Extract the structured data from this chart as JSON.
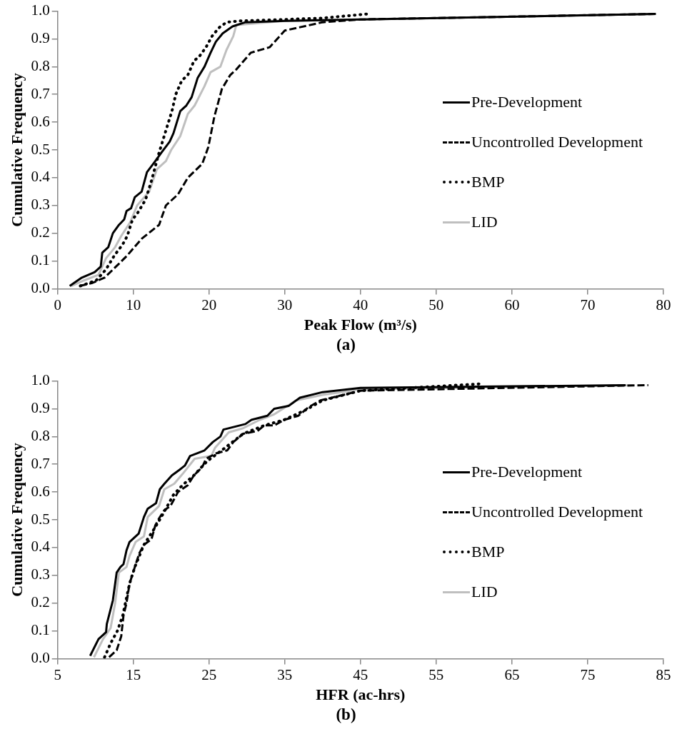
{
  "chart_data": [
    {
      "type": "line",
      "xlabel": "Peak Flow (m³/s)",
      "ylabel": "Cumulative Frequency",
      "legend": "right",
      "annotations": [
        "(a)"
      ],
      "xlim": [
        0,
        80
      ],
      "xticks": [
        0,
        10,
        20,
        30,
        40,
        50,
        60,
        70,
        80
      ],
      "ylim": [
        0,
        1
      ],
      "yticks": [
        {
          "value": 0,
          "label": "0.0"
        },
        {
          "value": 0.1,
          "label": "0.1"
        },
        {
          "value": 0.2,
          "label": "0.2"
        },
        {
          "value": 0.3,
          "label": "0.3"
        },
        {
          "value": 0.4,
          "label": "0.4"
        },
        {
          "value": 0.5,
          "label": "0.5"
        },
        {
          "value": 0.6,
          "label": "0.6"
        },
        {
          "value": 0.7,
          "label": "0.7"
        },
        {
          "value": 0.8,
          "label": "0.8"
        },
        {
          "value": 0.9,
          "label": "0.9"
        },
        {
          "value": 1,
          "label": "1.0"
        }
      ],
      "series": [
        {
          "name": "Pre-Development",
          "color": "#000000",
          "line_style": "solid",
          "x": [
            1.6,
            3.2,
            4.9,
            5.7,
            5.9,
            6.7,
            7.3,
            8.1,
            8.8,
            9.1,
            9.7,
            10.2,
            11.1,
            11.8,
            12.9,
            13.7,
            14.8,
            15.3,
            16.2,
            17.0,
            17.7,
            18.5,
            19.4,
            20.2,
            20.9,
            21.8,
            23.1,
            24.8,
            30,
            40,
            79
          ],
          "values": [
            0.01,
            0.04,
            0.06,
            0.08,
            0.13,
            0.15,
            0.2,
            0.23,
            0.25,
            0.28,
            0.29,
            0.33,
            0.35,
            0.42,
            0.46,
            0.49,
            0.53,
            0.56,
            0.64,
            0.66,
            0.69,
            0.76,
            0.8,
            0.85,
            0.89,
            0.92,
            0.945,
            0.96,
            0.965,
            0.97,
            0.99
          ]
        },
        {
          "name": "Uncontrolled Development",
          "color": "#000000",
          "line_style": "dashed",
          "x": [
            2.9,
            4.5,
            6.2,
            8.1,
            9.2,
            11.1,
            13.4,
            14.3,
            15.9,
            17.2,
            19.1,
            19.9,
            20.7,
            21.7,
            22.8,
            23.6,
            25.5,
            28,
            30,
            35,
            40,
            79
          ],
          "values": [
            0.01,
            0.02,
            0.04,
            0.09,
            0.12,
            0.18,
            0.23,
            0.3,
            0.34,
            0.4,
            0.45,
            0.51,
            0.62,
            0.72,
            0.77,
            0.79,
            0.85,
            0.87,
            0.93,
            0.96,
            0.97,
            0.99
          ]
        },
        {
          "name": "BMP",
          "color": "#000000",
          "line_style": "dotted",
          "x": [
            3.0,
            5.1,
            6.4,
            7.5,
            8.6,
            9.2,
            9.9,
            10.5,
            11.6,
            12.3,
            13.4,
            14.3,
            15.1,
            15.6,
            16.4,
            17.2,
            18.0,
            18.8,
            19.6,
            20.4,
            21.3,
            22.3,
            24.2,
            30,
            35,
            41
          ],
          "values": [
            0.01,
            0.03,
            0.07,
            0.12,
            0.16,
            0.19,
            0.25,
            0.27,
            0.32,
            0.38,
            0.49,
            0.57,
            0.64,
            0.7,
            0.75,
            0.77,
            0.82,
            0.84,
            0.87,
            0.91,
            0.94,
            0.96,
            0.965,
            0.97,
            0.975,
            0.99
          ]
        },
        {
          "name": "LID",
          "color": "#bfbfbf",
          "line_style": "solid",
          "x": [
            1.8,
            3.5,
            5.4,
            6.4,
            7.6,
            8.4,
            9.6,
            10.5,
            12.1,
            13.1,
            14.3,
            15.0,
            16.2,
            17.2,
            18.1,
            19.4,
            20.2,
            21.5,
            22.3,
            23.2,
            23.6,
            30,
            50,
            79
          ],
          "values": [
            0.01,
            0.03,
            0.05,
            0.11,
            0.15,
            0.19,
            0.24,
            0.3,
            0.35,
            0.43,
            0.46,
            0.5,
            0.55,
            0.63,
            0.66,
            0.73,
            0.78,
            0.8,
            0.86,
            0.91,
            0.95,
            0.965,
            0.975,
            0.99
          ]
        }
      ]
    },
    {
      "type": "line",
      "xlabel": "HFR (ac-hrs)",
      "ylabel": "Cumulative Frequency",
      "legend": "right",
      "annotations": [
        "(b)"
      ],
      "xlim": [
        5,
        85
      ],
      "xticks": [
        5,
        15,
        25,
        35,
        45,
        55,
        65,
        75,
        85
      ],
      "ylim": [
        0,
        1
      ],
      "yticks": [
        {
          "value": 0,
          "label": "0.0"
        },
        {
          "value": 0.1,
          "label": "0.1"
        },
        {
          "value": 0.2,
          "label": "0.2"
        },
        {
          "value": 0.3,
          "label": "0.3"
        },
        {
          "value": 0.4,
          "label": "0.4"
        },
        {
          "value": 0.5,
          "label": "0.5"
        },
        {
          "value": 0.6,
          "label": "0.6"
        },
        {
          "value": 0.7,
          "label": "0.7"
        },
        {
          "value": 0.8,
          "label": "0.8"
        },
        {
          "value": 0.9,
          "label": "0.9"
        },
        {
          "value": 1,
          "label": "1.0"
        }
      ],
      "series": [
        {
          "name": "Pre-Development",
          "color": "#000000",
          "line_style": "solid",
          "x": [
            9.3,
            10.4,
            11.4,
            11.5,
            12.3,
            12.8,
            13.3,
            13.7,
            14.1,
            14.5,
            15.7,
            16.4,
            16.9,
            18.0,
            18.5,
            19.1,
            20.1,
            21.1,
            21.8,
            22.5,
            24.4,
            25.5,
            26.5,
            26.9,
            29.8,
            30.6,
            32.7,
            33.6,
            35.5,
            37.0,
            40.0,
            45,
            80
          ],
          "values": [
            0.01,
            0.07,
            0.095,
            0.125,
            0.21,
            0.31,
            0.33,
            0.34,
            0.39,
            0.42,
            0.45,
            0.51,
            0.54,
            0.56,
            0.61,
            0.63,
            0.66,
            0.68,
            0.695,
            0.73,
            0.75,
            0.78,
            0.8,
            0.825,
            0.845,
            0.86,
            0.875,
            0.9,
            0.91,
            0.94,
            0.96,
            0.975,
            0.985
          ]
        },
        {
          "name": "Uncontrolled Development",
          "color": "#000000",
          "line_style": "dashed",
          "x": [
            11.8,
            12.8,
            13.4,
            13.7,
            14.1,
            14.5,
            15.2,
            15.8,
            16.4,
            17.4,
            17.9,
            18.4,
            19.1,
            19.9,
            20.9,
            22.2,
            23.0,
            24.1,
            24.6,
            26.0,
            27.4,
            28.2,
            29.5,
            31.4,
            32.3,
            33.6,
            34.9,
            36.8,
            38.1,
            39.7,
            45,
            83
          ],
          "values": [
            0.005,
            0.03,
            0.08,
            0.155,
            0.2,
            0.27,
            0.33,
            0.38,
            0.41,
            0.43,
            0.48,
            0.505,
            0.535,
            0.55,
            0.6,
            0.625,
            0.66,
            0.69,
            0.72,
            0.74,
            0.75,
            0.78,
            0.81,
            0.82,
            0.84,
            0.84,
            0.86,
            0.875,
            0.905,
            0.93,
            0.965,
            0.985
          ]
        },
        {
          "name": "BMP",
          "color": "#000000",
          "line_style": "dotted",
          "x": [
            11.2,
            12.0,
            12.9,
            13.6,
            14.5,
            15.2,
            16.4,
            17.7,
            18.7,
            20.3,
            21.5,
            23.0,
            24.7,
            26.9,
            29.5,
            32.3,
            34.9,
            37.7,
            40.0,
            45,
            61
          ],
          "values": [
            0.005,
            0.055,
            0.1,
            0.155,
            0.27,
            0.33,
            0.41,
            0.465,
            0.51,
            0.59,
            0.625,
            0.66,
            0.71,
            0.755,
            0.81,
            0.84,
            0.86,
            0.895,
            0.93,
            0.965,
            0.99
          ]
        },
        {
          "name": "LID",
          "color": "#bfbfbf",
          "line_style": "solid",
          "x": [
            9.8,
            11.0,
            12.0,
            12.6,
            13.1,
            14.1,
            14.5,
            15.3,
            16.4,
            16.9,
            18.4,
            19.1,
            20.4,
            21.5,
            23.1,
            25.3,
            25.8,
            27.6,
            29.5,
            31.7,
            33.6,
            36.5,
            40.0,
            45,
            81
          ],
          "values": [
            0.005,
            0.07,
            0.11,
            0.2,
            0.31,
            0.33,
            0.37,
            0.42,
            0.44,
            0.51,
            0.55,
            0.61,
            0.63,
            0.665,
            0.72,
            0.73,
            0.76,
            0.815,
            0.83,
            0.86,
            0.88,
            0.93,
            0.95,
            0.97,
            0.985
          ]
        }
      ]
    }
  ]
}
